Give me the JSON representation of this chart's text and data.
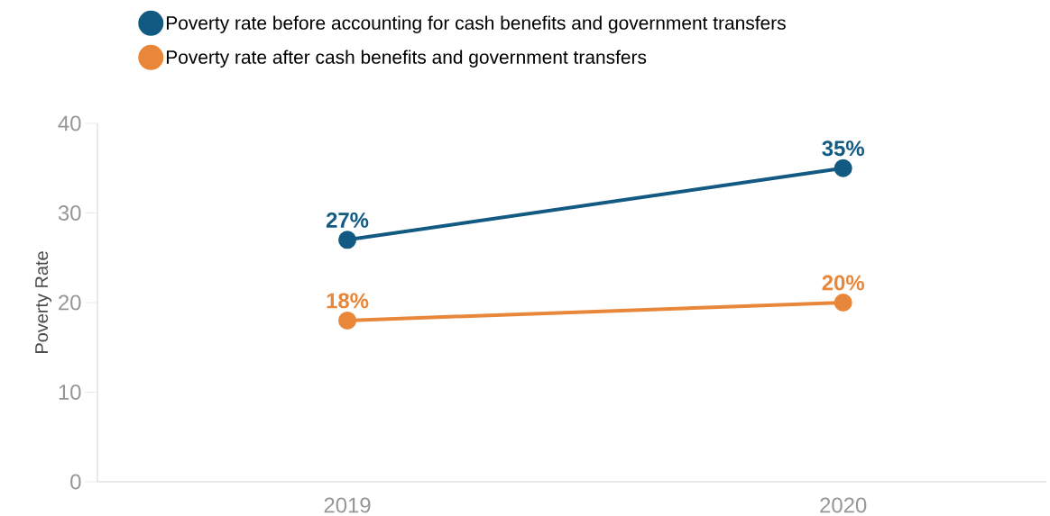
{
  "chart_data": {
    "type": "line",
    "ylabel": "Poverty Rate",
    "categories": [
      "2019",
      "2020"
    ],
    "series": [
      {
        "name": "Poverty rate before accounting for cash benefits and government transfers",
        "color": "#135a82",
        "values": [
          27,
          35
        ],
        "value_labels": [
          "27%",
          "35%"
        ]
      },
      {
        "name": "Poverty rate after cash benefits and government transfers",
        "color": "#e8873a",
        "values": [
          18,
          20
        ],
        "value_labels": [
          "18%",
          "20%"
        ]
      }
    ],
    "ylim": [
      0,
      40
    ],
    "yticks": [
      0,
      10,
      20,
      30,
      40
    ],
    "marker": "circle",
    "line_style": "solid",
    "legend": "top left",
    "grid": false
  }
}
